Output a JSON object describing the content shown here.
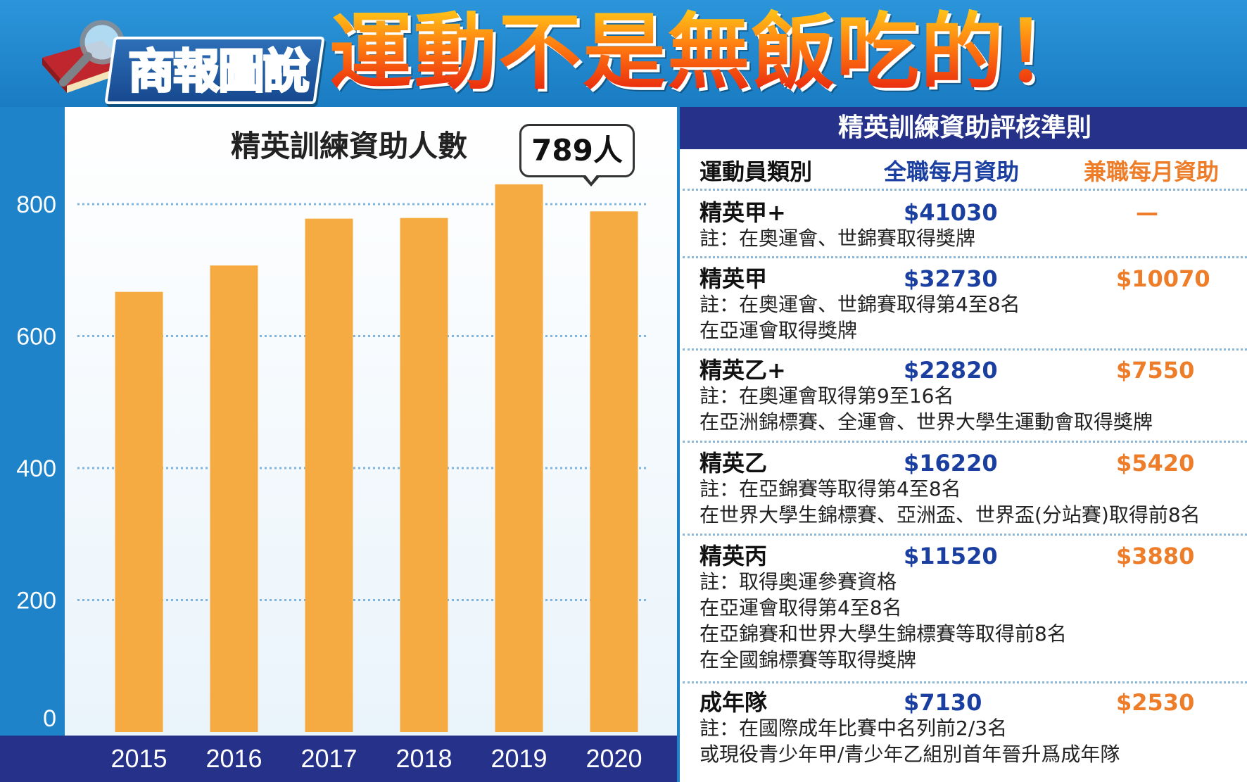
{
  "header": {
    "badge_label": "商報圖說",
    "headline": "運動不是無飯吃的！"
  },
  "colors": {
    "bar": "#f5ab41",
    "grid": "#7fb5de",
    "band": "#26318a",
    "full_time": "#1a3fa0",
    "part_time": "#ee7d2a"
  },
  "chart_data": {
    "type": "bar",
    "title": "精英訓練資助人數",
    "callout": "789人",
    "categories": [
      "2015",
      "2016",
      "2017",
      "2018",
      "2019",
      "2020"
    ],
    "values": [
      667,
      707,
      778,
      779,
      830,
      789
    ],
    "ylim": [
      0,
      800
    ],
    "yticks": [
      "0",
      "200",
      "400",
      "600",
      "800"
    ],
    "grid": true
  },
  "table": {
    "title": "精英訓練資助評核準則",
    "headers": {
      "category": "運動員類別",
      "full_time": "全職每月資助",
      "part_time": "兼職每月資助"
    },
    "rows": [
      {
        "name": "精英甲+",
        "full": "$41030",
        "part": "—",
        "notes": [
          "註：在奧運會、世錦賽取得獎牌"
        ]
      },
      {
        "name": "精英甲",
        "full": "$32730",
        "part": "$10070",
        "notes": [
          "註：在奧運會、世錦賽取得第4至8名",
          "在亞運會取得獎牌"
        ]
      },
      {
        "name": "精英乙+",
        "full": "$22820",
        "part": "$7550",
        "notes": [
          "註：在奧運會取得第9至16名",
          "在亞洲錦標賽、全運會、世界大學生運動會取得獎牌"
        ]
      },
      {
        "name": "精英乙",
        "full": "$16220",
        "part": "$5420",
        "notes": [
          "註：在亞錦賽等取得第4至8名",
          "在世界大學生錦標賽、亞洲盃、世界盃(分站賽)取得前8名"
        ]
      },
      {
        "name": "精英丙",
        "full": "$11520",
        "part": "$3880",
        "notes": [
          "註：取得奧運參賽資格",
          "在亞運會取得第4至8名",
          "在亞錦賽和世界大學生錦標賽等取得前8名",
          "在全國錦標賽等取得獎牌"
        ]
      },
      {
        "name": "成年隊",
        "full": "$7130",
        "part": "$2530",
        "notes": [
          "註：在國際成年比賽中名列前2/3名",
          "或現役青少年甲/青少年乙組別首年晉升爲成年隊"
        ]
      }
    ]
  }
}
